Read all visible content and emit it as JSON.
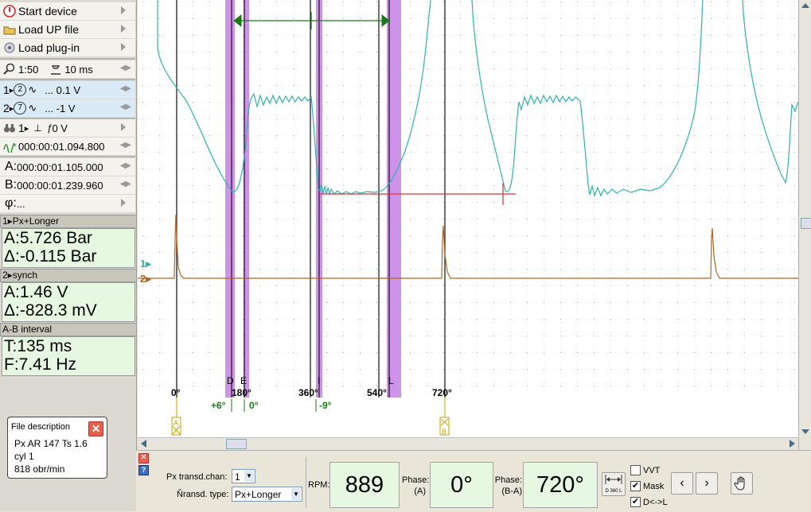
{
  "menu": {
    "start_device": "Start device",
    "load_up_file": "Load UP file",
    "load_plugin": "Load plug-in"
  },
  "timebase": {
    "zoom": "1:50",
    "time": "10 ms"
  },
  "channels": [
    {
      "num": "1",
      "coupling": "2",
      "value": "... 0.1 V"
    },
    {
      "num": "2",
      "coupling": "7",
      "value": "... -1 V"
    }
  ],
  "trigger": {
    "channel": "1",
    "level": "0 V",
    "time": "000:00:01.094.800"
  },
  "cursors": {
    "a_label": "A:",
    "a_time": "000:00:01.105.000",
    "b_label": "B:",
    "b_time": "000:00:01.239.960",
    "phi_label": "φ:",
    "phi_value": "..."
  },
  "panel1": {
    "head": "1▸Px+Longer",
    "a": "A:5.726 Bar",
    "d": "Δ:-0.115 Bar"
  },
  "panel2": {
    "head": "2▸synch",
    "a": "A:1.46 V",
    "d": "Δ:-828.3 mV"
  },
  "panel3": {
    "head": "A-B interval",
    "t": "T:135 ms",
    "f": "F:7.41 Hz"
  },
  "file_description": {
    "title": "File description",
    "lines": [
      "Px AR 147 Ts 1.6",
      "cyl 1",
      "818 obr/min"
    ]
  },
  "scope": {
    "deg_labels": [
      "0°",
      "180°",
      "360°",
      "540°",
      "720°"
    ],
    "mark_letters": [
      "D",
      "E",
      "I",
      "L"
    ],
    "offsets": [
      "+6°",
      "0°",
      "-9°"
    ],
    "ch1_marker": "1▸",
    "ch2_marker": "2▸",
    "cursor_a": "A",
    "cursor_b": "B",
    "colors": {
      "ch1": "#2fb0b0",
      "ch2": "#b5651d",
      "mask": "#c77fe6",
      "cursor_line": "#d33",
      "interval": "#1a7a1a"
    }
  },
  "bottom": {
    "transd_chan_label": "Px transd.chan:",
    "transd_chan_value": "1",
    "transd_type_label": "Ňransd. type:",
    "transd_type_value": "Px+Longer",
    "rpm_label": "RPM:",
    "rpm_value": "889",
    "phase_a_label": "Phase:",
    "phase_a_sub": "(A)",
    "phase_a_value": "0°",
    "phase_ba_label": "Phase:",
    "phase_ba_sub": "(B-A)",
    "phase_ba_value": "720°",
    "d360_label": "D 360 L",
    "vvt_label": "VVT",
    "mask_label": "Mask",
    "dl_label": "D<->L",
    "vvt_checked": false,
    "mask_checked": true,
    "dl_checked": true
  }
}
